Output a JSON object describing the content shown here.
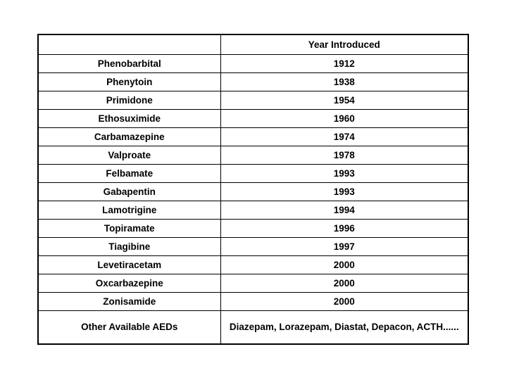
{
  "colors": {
    "highlight_text": "#AC3B1E",
    "normal_text": "#000000",
    "border": "#000000",
    "background": "#ffffff"
  },
  "table": {
    "header": {
      "drug_col": "",
      "year_col": "Year Introduced"
    },
    "rows": [
      {
        "drug": "Phenobarbital",
        "year": "1912",
        "highlight": true
      },
      {
        "drug": "Phenytoin",
        "year": "1938",
        "highlight": true
      },
      {
        "drug": "Primidone",
        "year": "1954",
        "highlight": true
      },
      {
        "drug": "Ethosuximide",
        "year": "1960",
        "highlight": true
      },
      {
        "drug": "Carbamazepine",
        "year": "1974",
        "highlight": true
      },
      {
        "drug": "Valproate",
        "year": "1978",
        "highlight": true
      },
      {
        "drug": "Felbamate",
        "year": "1993",
        "highlight": false
      },
      {
        "drug": "Gabapentin",
        "year": "1993",
        "highlight": false
      },
      {
        "drug": "Lamotrigine",
        "year": "1994",
        "highlight": false
      },
      {
        "drug": "Topiramate",
        "year": "1996",
        "highlight": false
      },
      {
        "drug": "Tiagibine",
        "year": "1997",
        "highlight": false
      },
      {
        "drug": "Levetiracetam",
        "year": "2000",
        "highlight": false
      },
      {
        "drug": "Oxcarbazepine",
        "year": "2000",
        "highlight": false
      },
      {
        "drug": "Zonisamide",
        "year": "2000",
        "highlight": false
      }
    ],
    "footer": {
      "label": "Other Available AEDs",
      "value": "Diazepam, Lorazepam, Diastat, Depacon, ACTH......"
    }
  }
}
